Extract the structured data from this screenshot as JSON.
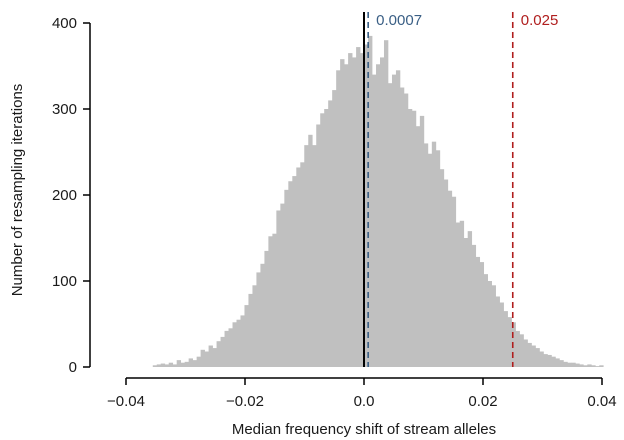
{
  "chart_data": {
    "type": "bar",
    "title": "",
    "xlabel": "Median frequency shift of stream alleles",
    "ylabel": "Number of resampling iterations",
    "xlim": [
      -0.04,
      0.04
    ],
    "ylim": [
      0,
      400
    ],
    "xticks": [
      -0.04,
      -0.02,
      0.0,
      0.02,
      0.04
    ],
    "xtick_labels": [
      "−0.04",
      "−0.02",
      "0.0",
      "0.02",
      "0.04"
    ],
    "yticks": [
      0,
      100,
      200,
      300,
      400
    ],
    "ytick_labels": [
      "0",
      "100",
      "200",
      "300",
      "400"
    ],
    "grid": false,
    "bar_color": "#c0c0c0",
    "series": [
      {
        "bin_start": -0.0355,
        "bin_width": 0.00067,
        "values": [
          2,
          3,
          4,
          3,
          5,
          3,
          8,
          5,
          6,
          10,
          8,
          12,
          20,
          18,
          25,
          22,
          30,
          35,
          42,
          45,
          52,
          55,
          60,
          72,
          85,
          95,
          110,
          120,
          135,
          152,
          155,
          182,
          190,
          206,
          216,
          222,
          232,
          238,
          258,
          270,
          258,
          282,
          295,
          300,
          310,
          322,
          345,
          358,
          352,
          365,
          360,
          372,
          365,
          375,
          385,
          340,
          352,
          360,
          380,
          330,
          340,
          345,
          325,
          318,
          300,
          298,
          280,
          292,
          260,
          248,
          262,
          252,
          230,
          218,
          205,
          198,
          168,
          170,
          150,
          158,
          142,
          128,
          122,
          108,
          100,
          95,
          82,
          75,
          65,
          58,
          52,
          42,
          38,
          32,
          28,
          25,
          22,
          18,
          15,
          14,
          12,
          10,
          8,
          6,
          5,
          5,
          4,
          3,
          2,
          3,
          2,
          1,
          2
        ]
      }
    ],
    "reference_lines": [
      {
        "value": 0.0,
        "color": "#000000",
        "style": "solid",
        "label": ""
      },
      {
        "value": 0.0007,
        "color": "#3a5f85",
        "style": "dashed",
        "label": "0.0007"
      },
      {
        "value": 0.025,
        "color": "#b01e1e",
        "style": "dashed",
        "label": "0.025"
      }
    ]
  }
}
